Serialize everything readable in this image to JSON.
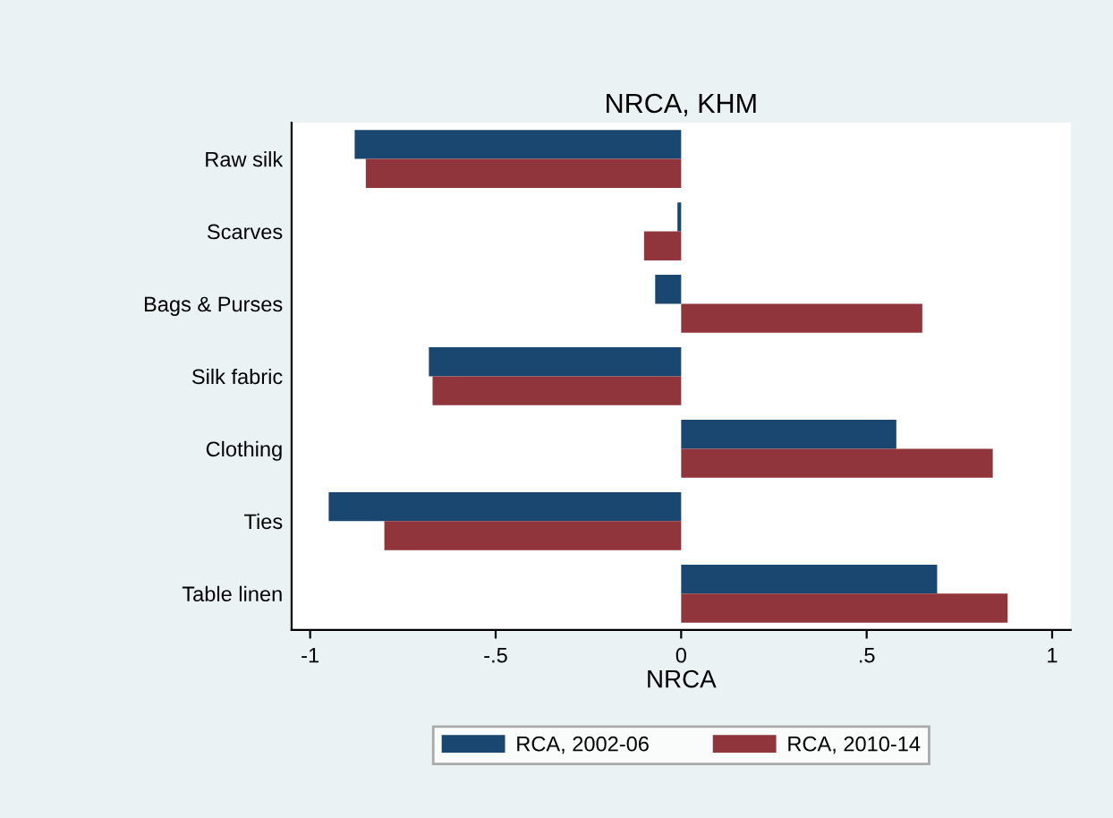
{
  "chart_data": {
    "type": "bar",
    "orientation": "horizontal",
    "title": "NRCA, KHM",
    "xlabel": "NRCA",
    "categories": [
      "Raw silk",
      "Scarves",
      "Bags & Purses",
      "Silk fabric",
      "Clothing",
      "Ties",
      "Table linen"
    ],
    "series": [
      {
        "name": "RCA, 2002-06",
        "color": "#1a476f",
        "values": [
          -0.88,
          -0.01,
          -0.07,
          -0.68,
          0.58,
          -0.95,
          0.69
        ]
      },
      {
        "name": "RCA, 2010-14",
        "color": "#90353b",
        "values": [
          -0.85,
          -0.1,
          0.65,
          -0.67,
          0.84,
          -0.8,
          0.88
        ]
      }
    ],
    "xlim": [
      -1.05,
      1.05
    ],
    "xticks": [
      {
        "value": -1,
        "label": "-1"
      },
      {
        "value": -0.5,
        "label": "-.5"
      },
      0,
      {
        "value": 0.5,
        "label": ".5"
      },
      1
    ],
    "grid": false,
    "legend": "bottom"
  }
}
